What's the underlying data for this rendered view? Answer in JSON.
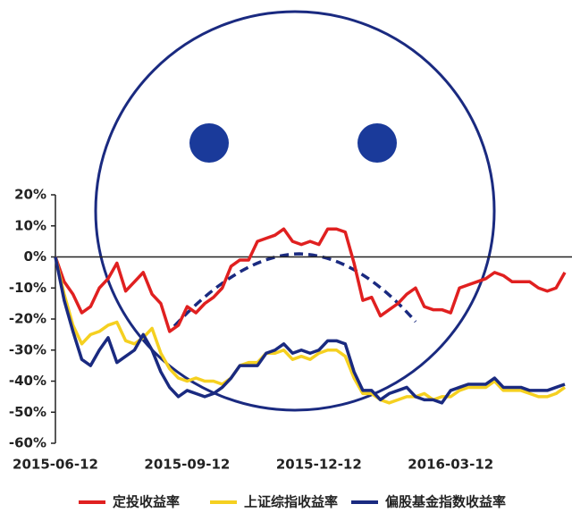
{
  "chart_data": {
    "type": "line",
    "categories": [
      "2015-06-12",
      null,
      null,
      null,
      null,
      null,
      null,
      null,
      null,
      null,
      null,
      null,
      null,
      null,
      null,
      "2015-09-12",
      null,
      null,
      null,
      null,
      null,
      null,
      null,
      null,
      null,
      null,
      null,
      null,
      null,
      null,
      "2015-12-12",
      null,
      null,
      null,
      null,
      null,
      null,
      null,
      null,
      null,
      null,
      null,
      null,
      null,
      null,
      "2016-03-12",
      null,
      null,
      null,
      null,
      null,
      null,
      null,
      null,
      null,
      null,
      null,
      null,
      null
    ],
    "series": [
      {
        "name": "定投收益率",
        "color": "#e02020",
        "values": [
          0,
          -8,
          -12,
          -18,
          -16,
          -10,
          -7,
          -2,
          -11,
          -8,
          -5,
          -12,
          -15,
          -24,
          -22,
          -16,
          -18,
          -15,
          -13,
          -10,
          -3,
          -1,
          -1,
          5,
          6,
          7,
          9,
          5,
          4,
          5,
          4,
          9,
          9,
          8,
          -2,
          -14,
          -13,
          -19,
          -17,
          -15,
          -12,
          -10,
          -16,
          -17,
          -17,
          -18,
          -10,
          -9,
          -8,
          -7,
          -5,
          -6,
          -8,
          -8,
          -8,
          -10,
          -11,
          -10,
          -5
        ]
      },
      {
        "name": "上证综指收益率",
        "color": "#f5d020",
        "values": [
          0,
          -12,
          -22,
          -28,
          -25,
          -24,
          -22,
          -21,
          -27,
          -28,
          -26,
          -23,
          -31,
          -36,
          -39,
          -40,
          -39,
          -40,
          -40,
          -41,
          -39,
          -35,
          -34,
          -34,
          -31,
          -31,
          -30,
          -33,
          -32,
          -33,
          -31,
          -30,
          -30,
          -32,
          -39,
          -44,
          -44,
          -46,
          -47,
          -46,
          -45,
          -45,
          -44,
          -46,
          -45,
          -45,
          -43,
          -42,
          -42,
          -42,
          -40,
          -43,
          -43,
          -43,
          -44,
          -45,
          -45,
          -44,
          -42
        ]
      },
      {
        "name": "偏股基金指数收益率",
        "color": "#1a2a80",
        "values": [
          0,
          -14,
          -24,
          -33,
          -35,
          -30,
          -26,
          -34,
          -32,
          -30,
          -25,
          -30,
          -37,
          -42,
          -45,
          -43,
          -44,
          -45,
          -44,
          -42,
          -39,
          -35,
          -35,
          -35,
          -31,
          -30,
          -28,
          -31,
          -30,
          -31,
          -30,
          -27,
          -27,
          -28,
          -37,
          -43,
          -43,
          -46,
          -44,
          -43,
          -42,
          -45,
          -46,
          -46,
          -47,
          -43,
          -42,
          -41,
          -41,
          -41,
          -39,
          -42,
          -42,
          -42,
          -43,
          -43,
          -43,
          -42,
          -41
        ]
      }
    ],
    "ylim": [
      -60,
      20
    ],
    "yticks": [
      {
        "value": -60,
        "label": "-60%"
      },
      {
        "value": -50,
        "label": "-50%"
      },
      {
        "value": -40,
        "label": "-40%"
      },
      {
        "value": -30,
        "label": "-30%"
      },
      {
        "value": -20,
        "label": "-20%"
      },
      {
        "value": -10,
        "label": "-10%"
      },
      {
        "value": 0,
        "label": "0%"
      },
      {
        "value": 10,
        "label": "10%"
      },
      {
        "value": 20,
        "label": "20%"
      }
    ]
  }
}
